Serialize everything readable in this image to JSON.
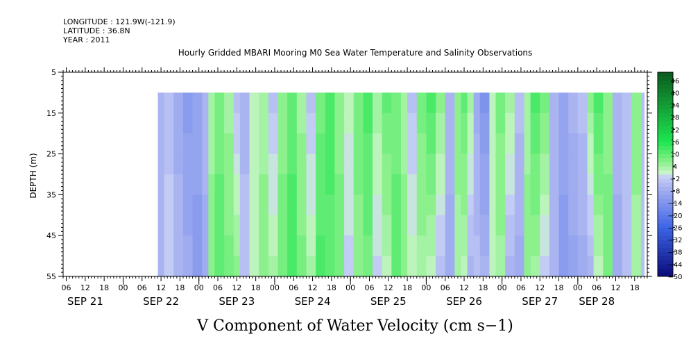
{
  "header": {
    "longitude": "LONGITUDE : 121.9W(-121.9)",
    "latitude": "LATITUDE : 36.8N",
    "year": "YEAR : 2011"
  },
  "chart_data": {
    "type": "heatmap",
    "title": "Hourly Gridded MBARI Mooring M0 Sea Water Temperature and Salinity Observations",
    "xlabel": "V Component of Water Velocity (cm s−1)",
    "ylabel": "DEPTH (m)",
    "ylim": [
      55,
      5
    ],
    "y_ticks": [
      "5",
      "15",
      "25",
      "35",
      "45",
      "55"
    ],
    "y_tick_values": [
      5,
      15,
      25,
      35,
      45,
      55
    ],
    "x_range_hours": [
      -19,
      166
    ],
    "data_depth_range": [
      10,
      55
    ],
    "data_start_hour": 11,
    "data_end_hour": 164,
    "hour_ticks": [
      {
        "h": -18,
        "label": "06"
      },
      {
        "h": -12,
        "label": "12"
      },
      {
        "h": -6,
        "label": "18"
      },
      {
        "h": 0,
        "label": "00"
      },
      {
        "h": 6,
        "label": "06"
      },
      {
        "h": 12,
        "label": "12"
      },
      {
        "h": 18,
        "label": "18"
      },
      {
        "h": 24,
        "label": "00"
      },
      {
        "h": 30,
        "label": "06"
      },
      {
        "h": 36,
        "label": "12"
      },
      {
        "h": 42,
        "label": "18"
      },
      {
        "h": 48,
        "label": "00"
      },
      {
        "h": 54,
        "label": "06"
      },
      {
        "h": 60,
        "label": "12"
      },
      {
        "h": 66,
        "label": "18"
      },
      {
        "h": 72,
        "label": "00"
      },
      {
        "h": 78,
        "label": "06"
      },
      {
        "h": 84,
        "label": "12"
      },
      {
        "h": 90,
        "label": "18"
      },
      {
        "h": 96,
        "label": "00"
      },
      {
        "h": 102,
        "label": "06"
      },
      {
        "h": 108,
        "label": "12"
      },
      {
        "h": 114,
        "label": "18"
      },
      {
        "h": 120,
        "label": "00"
      },
      {
        "h": 126,
        "label": "06"
      },
      {
        "h": 132,
        "label": "12"
      },
      {
        "h": 138,
        "label": "18"
      },
      {
        "h": 144,
        "label": "00"
      },
      {
        "h": 150,
        "label": "06"
      },
      {
        "h": 156,
        "label": "12"
      },
      {
        "h": 162,
        "label": "18"
      }
    ],
    "date_labels": [
      {
        "h": -12,
        "label": "SEP 21"
      },
      {
        "h": 12,
        "label": "SEP 22"
      },
      {
        "h": 36,
        "label": "SEP 23"
      },
      {
        "h": 60,
        "label": "SEP 24"
      },
      {
        "h": 84,
        "label": "SEP 25"
      },
      {
        "h": 108,
        "label": "SEP 26"
      },
      {
        "h": 132,
        "label": "SEP 27"
      },
      {
        "h": 150,
        "label": "SEP 28"
      }
    ],
    "colorbar": {
      "min": -50,
      "max": 50,
      "step": 2,
      "labels": [
        "46",
        "40",
        "34",
        "28",
        "22",
        "16",
        "10",
        "4",
        "−2",
        "−8",
        "−14",
        "−20",
        "−26",
        "−32",
        "−38",
        "−44",
        "−50"
      ],
      "label_values": [
        46,
        40,
        34,
        28,
        22,
        16,
        10,
        4,
        -2,
        -8,
        -14,
        -20,
        -26,
        -32,
        -38,
        -44,
        -50
      ],
      "colors": {
        "neg_max": "#0a0a78",
        "neg_mid": "#3c64e6",
        "neg_light": "#aab4f0",
        "near_zero_neg": "#c8d2f5",
        "near_zero_pos": "#c8f5c8",
        "pos_light": "#8cf08c",
        "pos_mid": "#1ee650",
        "pos_max": "#0a5a1e"
      }
    },
    "column_profile": [
      {
        "h": 11,
        "top": -6,
        "bottom": -6
      },
      {
        "h": 13,
        "top": -4,
        "bottom": -2
      },
      {
        "h": 16,
        "top": -8,
        "bottom": -6
      },
      {
        "h": 19,
        "top": -12,
        "bottom": -8
      },
      {
        "h": 22,
        "top": -10,
        "bottom": -12
      },
      {
        "h": 25,
        "top": -6,
        "bottom": -8
      },
      {
        "h": 27,
        "top": 4,
        "bottom": 6
      },
      {
        "h": 29,
        "top": 8,
        "bottom": 10
      },
      {
        "h": 32,
        "top": 4,
        "bottom": 8
      },
      {
        "h": 35,
        "top": -4,
        "bottom": 6
      },
      {
        "h": 37,
        "top": -6,
        "bottom": -4
      },
      {
        "h": 40,
        "top": 2,
        "bottom": 2
      },
      {
        "h": 43,
        "top": 4,
        "bottom": 6
      },
      {
        "h": 46,
        "top": -4,
        "bottom": 4
      },
      {
        "h": 49,
        "top": 6,
        "bottom": 8
      },
      {
        "h": 52,
        "top": 10,
        "bottom": 12
      },
      {
        "h": 55,
        "top": 4,
        "bottom": 8
      },
      {
        "h": 58,
        "top": -4,
        "bottom": 4
      },
      {
        "h": 61,
        "top": 8,
        "bottom": 12
      },
      {
        "h": 64,
        "top": 12,
        "bottom": 10
      },
      {
        "h": 67,
        "top": 6,
        "bottom": 8
      },
      {
        "h": 70,
        "top": 2,
        "bottom": -2
      },
      {
        "h": 73,
        "top": 8,
        "bottom": 6
      },
      {
        "h": 76,
        "top": 12,
        "bottom": 8
      },
      {
        "h": 79,
        "top": 4,
        "bottom": -2
      },
      {
        "h": 82,
        "top": 10,
        "bottom": 2
      },
      {
        "h": 85,
        "top": 8,
        "bottom": 10
      },
      {
        "h": 88,
        "top": 4,
        "bottom": 6
      },
      {
        "h": 90,
        "top": -4,
        "bottom": 2
      },
      {
        "h": 93,
        "top": 8,
        "bottom": 4
      },
      {
        "h": 96,
        "top": 12,
        "bottom": 2
      },
      {
        "h": 99,
        "top": 6,
        "bottom": -4
      },
      {
        "h": 102,
        "top": -6,
        "bottom": -8
      },
      {
        "h": 105,
        "top": 6,
        "bottom": 4
      },
      {
        "h": 107,
        "top": 10,
        "bottom": 2
      },
      {
        "h": 109,
        "top": 4,
        "bottom": -6
      },
      {
        "h": 111,
        "top": -8,
        "bottom": -4
      },
      {
        "h": 113,
        "top": -14,
        "bottom": -6
      },
      {
        "h": 116,
        "top": 2,
        "bottom": 2
      },
      {
        "h": 118,
        "top": 8,
        "bottom": 4
      },
      {
        "h": 121,
        "top": 4,
        "bottom": -6
      },
      {
        "h": 124,
        "top": -4,
        "bottom": -8
      },
      {
        "h": 127,
        "top": 4,
        "bottom": 6
      },
      {
        "h": 129,
        "top": 12,
        "bottom": 4
      },
      {
        "h": 132,
        "top": 8,
        "bottom": -2
      },
      {
        "h": 135,
        "top": -6,
        "bottom": -6
      },
      {
        "h": 138,
        "top": -10,
        "bottom": -12
      },
      {
        "h": 141,
        "top": -6,
        "bottom": -10
      },
      {
        "h": 144,
        "top": -4,
        "bottom": -8
      },
      {
        "h": 147,
        "top": 6,
        "bottom": -6
      },
      {
        "h": 149,
        "top": 12,
        "bottom": 2
      },
      {
        "h": 152,
        "top": 6,
        "bottom": 8
      },
      {
        "h": 155,
        "top": -6,
        "bottom": -8
      },
      {
        "h": 158,
        "top": -4,
        "bottom": -4
      },
      {
        "h": 161,
        "top": 6,
        "bottom": 4
      },
      {
        "h": 164,
        "top": -4,
        "bottom": -4
      }
    ]
  }
}
